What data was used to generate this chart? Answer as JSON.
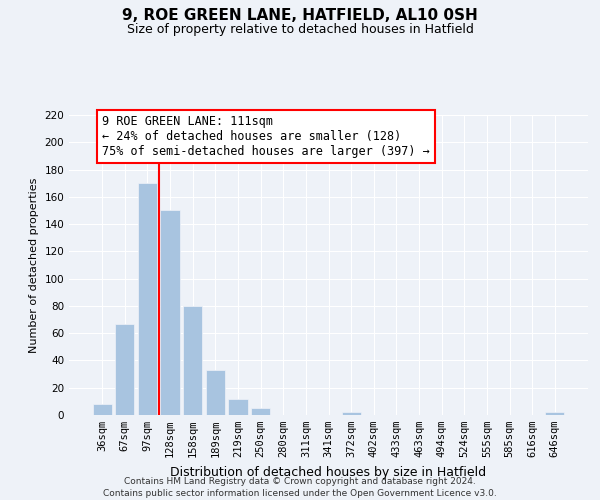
{
  "title": "9, ROE GREEN LANE, HATFIELD, AL10 0SH",
  "subtitle": "Size of property relative to detached houses in Hatfield",
  "xlabel": "Distribution of detached houses by size in Hatfield",
  "ylabel": "Number of detached properties",
  "bar_labels": [
    "36sqm",
    "67sqm",
    "97sqm",
    "128sqm",
    "158sqm",
    "189sqm",
    "219sqm",
    "250sqm",
    "280sqm",
    "311sqm",
    "341sqm",
    "372sqm",
    "402sqm",
    "433sqm",
    "463sqm",
    "494sqm",
    "524sqm",
    "555sqm",
    "585sqm",
    "616sqm",
    "646sqm"
  ],
  "bar_values": [
    8,
    67,
    170,
    150,
    80,
    33,
    12,
    5,
    0,
    0,
    0,
    2,
    0,
    0,
    0,
    0,
    0,
    0,
    0,
    0,
    2
  ],
  "bar_color": "#a8c4e0",
  "redline_index": 2.5,
  "ylim": [
    0,
    220
  ],
  "yticks": [
    0,
    20,
    40,
    60,
    80,
    100,
    120,
    140,
    160,
    180,
    200,
    220
  ],
  "annotation_title": "9 ROE GREEN LANE: 111sqm",
  "annotation_line1": "← 24% of detached houses are smaller (128)",
  "annotation_line2": "75% of semi-detached houses are larger (397) →",
  "footer_line1": "Contains HM Land Registry data © Crown copyright and database right 2024.",
  "footer_line2": "Contains public sector information licensed under the Open Government Licence v3.0.",
  "background_color": "#eef2f8",
  "grid_color": "#ffffff",
  "title_fontsize": 11,
  "subtitle_fontsize": 9,
  "xlabel_fontsize": 9,
  "ylabel_fontsize": 8,
  "tick_fontsize": 7.5,
  "footer_fontsize": 6.5,
  "ann_fontsize": 8.5
}
